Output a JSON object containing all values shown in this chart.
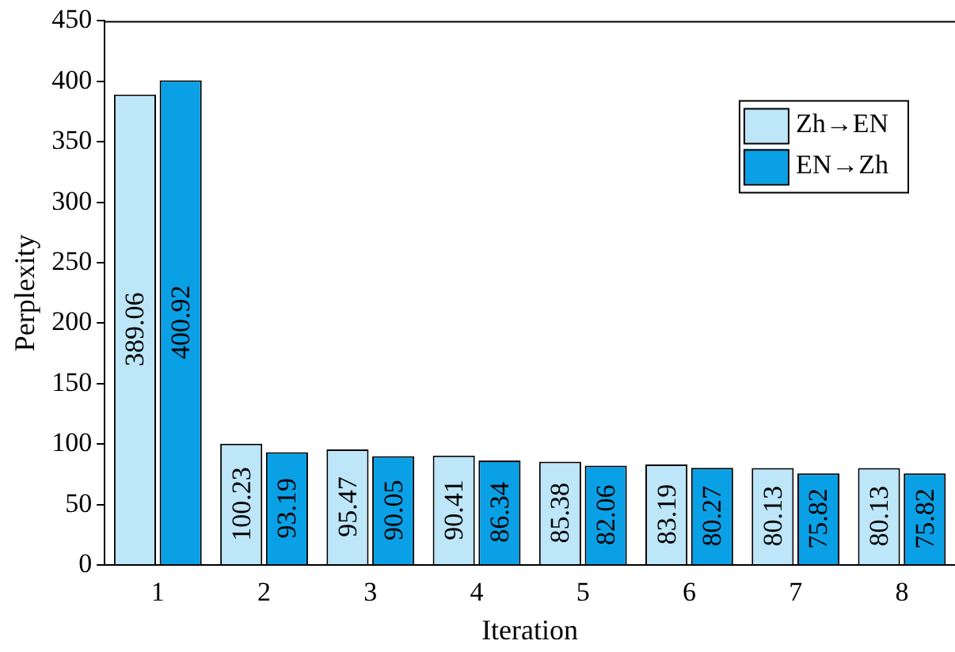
{
  "chart_data": {
    "type": "bar",
    "xlabel": "Iteration",
    "ylabel": "Perplexity",
    "categories": [
      "1",
      "2",
      "3",
      "4",
      "5",
      "6",
      "7",
      "8"
    ],
    "series": [
      {
        "name": "Zh→EN",
        "color": "#bde6f8",
        "values": [
          389.06,
          100.23,
          95.47,
          90.41,
          85.38,
          83.19,
          80.13,
          80.13
        ]
      },
      {
        "name": "EN→Zh",
        "color": "#0aa0e6",
        "values": [
          400.92,
          93.19,
          90.05,
          86.34,
          82.06,
          80.27,
          75.82,
          75.82
        ]
      }
    ],
    "ylim": [
      0,
      450
    ],
    "yticks": [
      0,
      50,
      100,
      150,
      200,
      250,
      300,
      350,
      400,
      450
    ],
    "data_labels": true,
    "legend": "top right",
    "grid": false
  }
}
